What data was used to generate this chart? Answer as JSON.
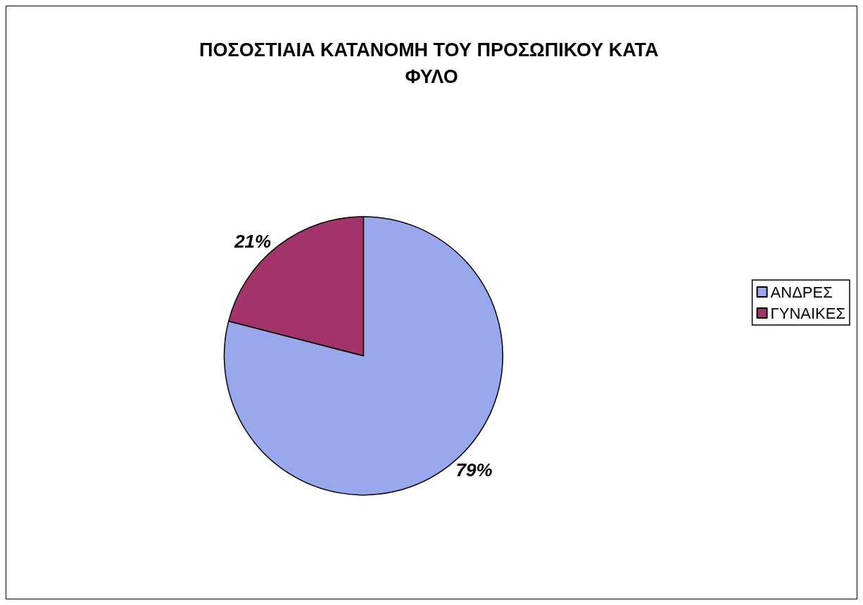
{
  "chart_data": {
    "type": "pie",
    "title": "ΠΟΣΟΣΤΙΑΙΑ ΚΑΤΑΝΟΜΗ ΤΟΥ ΠΡΟΣΩΠΙΚΟΥ ΚΑΤΑ ΦΥΛΟ",
    "categories": [
      "ΑΝΔΡΕΣ",
      "ΓΥΝΑΙΚΕΣ"
    ],
    "values": [
      79,
      21
    ],
    "colors": [
      "#99a8ec",
      "#a3336a"
    ],
    "value_labels": [
      "79%",
      "21%"
    ],
    "legend": "right"
  }
}
